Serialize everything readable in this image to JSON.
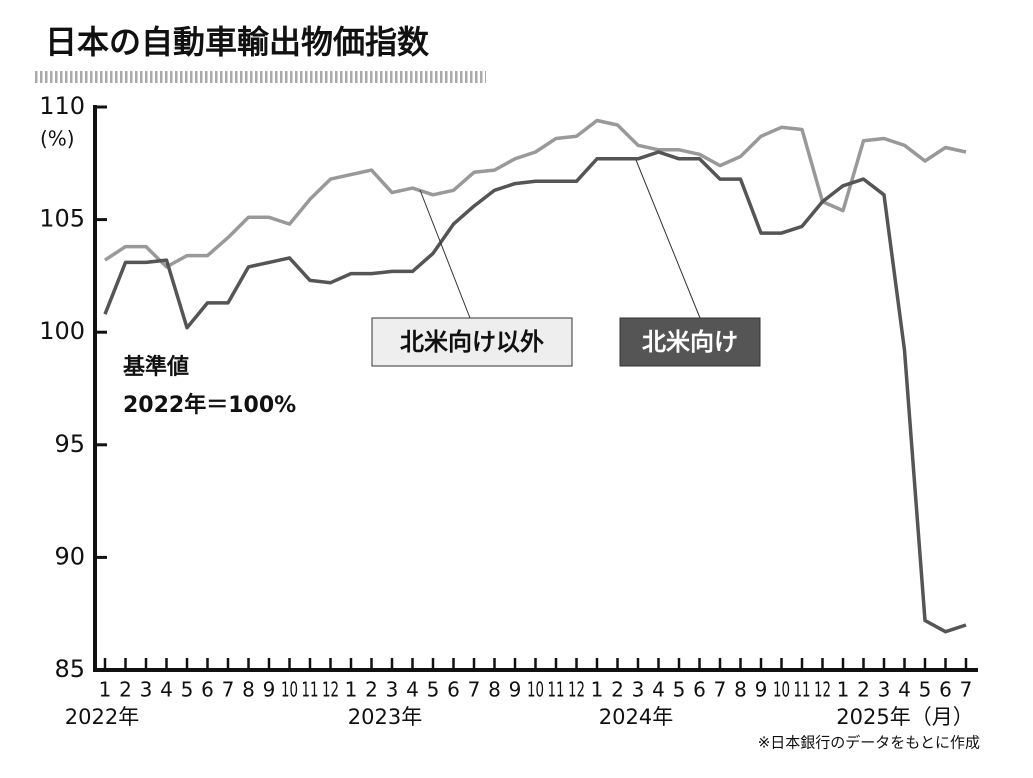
{
  "chart_data": {
    "type": "line",
    "title": "日本の自動車輸出物価指数",
    "y_unit": "(%)",
    "base_note": [
      "基準値",
      "2022年＝100%"
    ],
    "source": "※日本銀行のデータをもとに作成",
    "categories": [
      "1",
      "2",
      "3",
      "4",
      "5",
      "6",
      "7",
      "8",
      "9",
      "10",
      "11",
      "12",
      "1",
      "2",
      "3",
      "4",
      "5",
      "6",
      "7",
      "8",
      "9",
      "10",
      "11",
      "12",
      "1",
      "2",
      "3",
      "4",
      "5",
      "6",
      "7",
      "8",
      "9",
      "10",
      "11",
      "12",
      "1",
      "2",
      "3",
      "4",
      "5",
      "6",
      "7"
    ],
    "year_labels": [
      "2022年",
      "2023年",
      "2024年",
      "2025年（月）"
    ],
    "series": [
      {
        "name": "北米向け",
        "color": "#555555",
        "values": [
          100.8,
          103.1,
          103.1,
          103.2,
          100.2,
          101.3,
          101.3,
          102.9,
          103.1,
          103.3,
          102.3,
          102.2,
          102.6,
          102.6,
          102.7,
          102.7,
          103.5,
          104.8,
          105.6,
          106.3,
          106.6,
          106.7,
          106.7,
          106.7,
          107.7,
          107.7,
          107.7,
          108.0,
          107.7,
          107.7,
          106.8,
          106.8,
          104.4,
          104.4,
          104.7,
          105.8,
          106.5,
          106.8,
          106.1,
          99.2,
          87.2,
          86.7,
          87.0
        ]
      },
      {
        "name": "北米向け以外",
        "color": "#999999",
        "values": [
          103.2,
          103.8,
          103.8,
          102.9,
          103.4,
          103.4,
          104.2,
          105.1,
          105.1,
          104.8,
          105.9,
          106.8,
          107.0,
          107.2,
          106.2,
          106.4,
          106.1,
          106.3,
          107.1,
          107.2,
          107.7,
          108.0,
          108.6,
          108.7,
          109.4,
          109.2,
          108.3,
          108.1,
          108.1,
          107.9,
          107.4,
          107.8,
          108.7,
          109.1,
          109.0,
          105.8,
          105.4,
          108.5,
          108.6,
          108.3,
          107.6,
          108.2,
          108.0
        ]
      }
    ],
    "ylim": [
      85,
      110
    ],
    "yticks": [
      85,
      90,
      95,
      100,
      105,
      110
    ],
    "grid": false
  }
}
